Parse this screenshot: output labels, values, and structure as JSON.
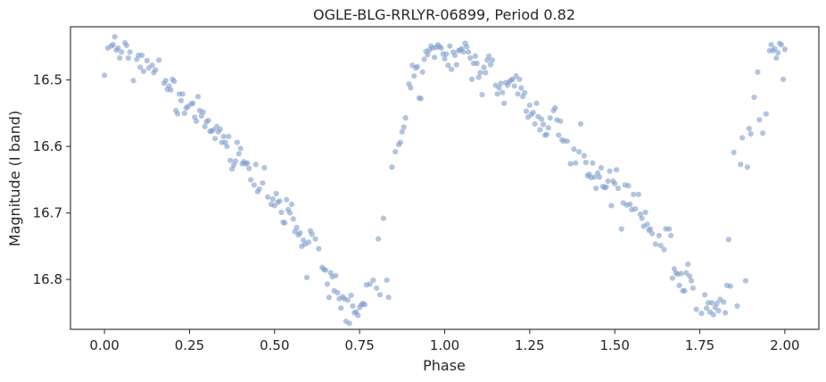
{
  "chart_data": {
    "type": "scatter",
    "title": "OGLE-BLG-RRLYR-06899, Period 0.82",
    "xlabel": "Phase",
    "ylabel": "Magnitude (I band)",
    "xlim": [
      -0.1,
      2.1
    ],
    "ylim": [
      16.875,
      16.42
    ],
    "y_inverted": true,
    "grid": false,
    "point_color": "#7f9ccb",
    "point_opacity": 0.6,
    "x_ticks": [
      0.0,
      0.25,
      0.5,
      0.75,
      1.0,
      1.25,
      1.5,
      1.75,
      2.0
    ],
    "x_tick_labels": [
      "0.00",
      "0.25",
      "0.50",
      "0.75",
      "1.00",
      "1.25",
      "1.50",
      "1.75",
      "2.00"
    ],
    "y_ticks": [
      16.5,
      16.6,
      16.7,
      16.8
    ],
    "y_tick_labels": [
      "16.5",
      "16.6",
      "16.7",
      "16.8"
    ],
    "points": [
      [
        0.0,
        16.493
      ],
      [
        0.01,
        16.452
      ],
      [
        0.02,
        16.449
      ],
      [
        0.025,
        16.447
      ],
      [
        0.03,
        16.435
      ],
      [
        0.035,
        16.455
      ],
      [
        0.04,
        16.452
      ],
      [
        0.045,
        16.467
      ],
      [
        0.05,
        16.458
      ],
      [
        0.06,
        16.444
      ],
      [
        0.065,
        16.448
      ],
      [
        0.07,
        16.467
      ],
      [
        0.075,
        16.458
      ],
      [
        0.085,
        16.501
      ],
      [
        0.095,
        16.469
      ],
      [
        0.1,
        16.463
      ],
      [
        0.105,
        16.481
      ],
      [
        0.11,
        16.463
      ],
      [
        0.115,
        16.487
      ],
      [
        0.125,
        16.471
      ],
      [
        0.13,
        16.482
      ],
      [
        0.14,
        16.478
      ],
      [
        0.145,
        16.489
      ],
      [
        0.15,
        16.485
      ],
      [
        0.16,
        16.47
      ],
      [
        0.175,
        16.505
      ],
      [
        0.18,
        16.501
      ],
      [
        0.185,
        16.514
      ],
      [
        0.19,
        16.509
      ],
      [
        0.195,
        16.515
      ],
      [
        0.2,
        16.499
      ],
      [
        0.205,
        16.502
      ],
      [
        0.21,
        16.546
      ],
      [
        0.215,
        16.551
      ],
      [
        0.22,
        16.521
      ],
      [
        0.225,
        16.531
      ],
      [
        0.23,
        16.521
      ],
      [
        0.235,
        16.55
      ],
      [
        0.24,
        16.542
      ],
      [
        0.245,
        16.54
      ],
      [
        0.255,
        16.536
      ],
      [
        0.26,
        16.535
      ],
      [
        0.265,
        16.556
      ],
      [
        0.27,
        16.562
      ],
      [
        0.275,
        16.525
      ],
      [
        0.28,
        16.546
      ],
      [
        0.285,
        16.554
      ],
      [
        0.29,
        16.548
      ],
      [
        0.295,
        16.57
      ],
      [
        0.3,
        16.563
      ],
      [
        0.305,
        16.561
      ],
      [
        0.31,
        16.577
      ],
      [
        0.315,
        16.577
      ],
      [
        0.32,
        16.575
      ],
      [
        0.325,
        16.588
      ],
      [
        0.33,
        16.57
      ],
      [
        0.335,
        16.578
      ],
      [
        0.34,
        16.574
      ],
      [
        0.345,
        16.594
      ],
      [
        0.35,
        16.585
      ],
      [
        0.355,
        16.594
      ],
      [
        0.36,
        16.6
      ],
      [
        0.365,
        16.585
      ],
      [
        0.37,
        16.621
      ],
      [
        0.375,
        16.634
      ],
      [
        0.38,
        16.628
      ],
      [
        0.385,
        16.622
      ],
      [
        0.39,
        16.594
      ],
      [
        0.395,
        16.611
      ],
      [
        0.4,
        16.603
      ],
      [
        0.405,
        16.626
      ],
      [
        0.41,
        16.623
      ],
      [
        0.415,
        16.626
      ],
      [
        0.42,
        16.625
      ],
      [
        0.425,
        16.633
      ],
      [
        0.43,
        16.65
      ],
      [
        0.44,
        16.658
      ],
      [
        0.445,
        16.627
      ],
      [
        0.45,
        16.668
      ],
      [
        0.455,
        16.664
      ],
      [
        0.465,
        16.655
      ],
      [
        0.47,
        16.632
      ],
      [
        0.48,
        16.676
      ],
      [
        0.49,
        16.687
      ],
      [
        0.495,
        16.679
      ],
      [
        0.5,
        16.689
      ],
      [
        0.505,
        16.671
      ],
      [
        0.51,
        16.684
      ],
      [
        0.515,
        16.682
      ],
      [
        0.52,
        16.699
      ],
      [
        0.525,
        16.714
      ],
      [
        0.53,
        16.715
      ],
      [
        0.535,
        16.68
      ],
      [
        0.54,
        16.695
      ],
      [
        0.545,
        16.7
      ],
      [
        0.55,
        16.687
      ],
      [
        0.555,
        16.709
      ],
      [
        0.56,
        16.728
      ],
      [
        0.565,
        16.722
      ],
      [
        0.57,
        16.733
      ],
      [
        0.575,
        16.73
      ],
      [
        0.58,
        16.75
      ],
      [
        0.585,
        16.741
      ],
      [
        0.59,
        16.747
      ],
      [
        0.595,
        16.797
      ],
      [
        0.6,
        16.744
      ],
      [
        0.605,
        16.727
      ],
      [
        0.61,
        16.732
      ],
      [
        0.62,
        16.739
      ],
      [
        0.63,
        16.754
      ],
      [
        0.64,
        16.782
      ],
      [
        0.645,
        16.785
      ],
      [
        0.65,
        16.786
      ],
      [
        0.655,
        16.807
      ],
      [
        0.66,
        16.827
      ],
      [
        0.665,
        16.79
      ],
      [
        0.67,
        16.796
      ],
      [
        0.675,
        16.817
      ],
      [
        0.68,
        16.794
      ],
      [
        0.685,
        16.82
      ],
      [
        0.69,
        16.829
      ],
      [
        0.695,
        16.843
      ],
      [
        0.7,
        16.826
      ],
      [
        0.705,
        16.829
      ],
      [
        0.71,
        16.863
      ],
      [
        0.715,
        16.831
      ],
      [
        0.72,
        16.866
      ],
      [
        0.725,
        16.824
      ],
      [
        0.73,
        16.84
      ],
      [
        0.735,
        16.85
      ],
      [
        0.74,
        16.849
      ],
      [
        0.745,
        16.854
      ],
      [
        0.75,
        16.842
      ],
      [
        0.755,
        16.838
      ],
      [
        0.76,
        16.836
      ],
      [
        0.765,
        16.838
      ],
      [
        0.77,
        16.808
      ],
      [
        0.78,
        16.807
      ],
      [
        0.79,
        16.801
      ],
      [
        0.8,
        16.813
      ],
      [
        0.805,
        16.739
      ],
      [
        0.81,
        16.823
      ],
      [
        0.82,
        16.708
      ],
      [
        0.83,
        16.801
      ],
      [
        0.835,
        16.827
      ],
      [
        0.845,
        16.631
      ],
      [
        0.855,
        16.608
      ],
      [
        0.865,
        16.597
      ],
      [
        0.87,
        16.594
      ],
      [
        0.875,
        16.578
      ],
      [
        0.88,
        16.571
      ],
      [
        0.885,
        16.557
      ],
      [
        0.895,
        16.506
      ],
      [
        0.9,
        16.512
      ],
      [
        0.905,
        16.478
      ],
      [
        0.91,
        16.494
      ],
      [
        0.915,
        16.482
      ],
      [
        0.92,
        16.48
      ],
      [
        0.925,
        16.527
      ],
      [
        0.93,
        16.528
      ],
      [
        0.935,
        16.488
      ],
      [
        0.94,
        16.469
      ],
      [
        0.945,
        16.457
      ],
      [
        0.95,
        16.462
      ],
      [
        0.955,
        16.455
      ],
      [
        0.96,
        16.449
      ],
      [
        0.965,
        16.452
      ],
      [
        0.97,
        16.466
      ],
      [
        0.975,
        16.451
      ],
      [
        0.98,
        16.447
      ],
      [
        0.985,
        16.45
      ],
      [
        0.99,
        16.452
      ],
      [
        0.995,
        16.461
      ],
      [
        1.0,
        16.468
      ],
      [
        1.005,
        16.461
      ],
      [
        1.01,
        16.478
      ],
      [
        1.015,
        16.449
      ],
      [
        1.02,
        16.484
      ],
      [
        1.025,
        16.458
      ],
      [
        1.03,
        16.463
      ],
      [
        1.035,
        16.477
      ],
      [
        1.04,
        16.456
      ],
      [
        1.045,
        16.455
      ],
      [
        1.05,
        16.453
      ],
      [
        1.055,
        16.458
      ],
      [
        1.06,
        16.445
      ],
      [
        1.065,
        16.45
      ],
      [
        1.07,
        16.458
      ],
      [
        1.075,
        16.467
      ],
      [
        1.08,
        16.499
      ],
      [
        1.085,
        16.475
      ],
      [
        1.09,
        16.464
      ],
      [
        1.095,
        16.475
      ],
      [
        1.1,
        16.496
      ],
      [
        1.105,
        16.489
      ],
      [
        1.11,
        16.522
      ],
      [
        1.115,
        16.481
      ],
      [
        1.12,
        16.489
      ],
      [
        1.125,
        16.47
      ],
      [
        1.13,
        16.464
      ],
      [
        1.135,
        16.477
      ],
      [
        1.14,
        16.47
      ],
      [
        1.15,
        16.508
      ],
      [
        1.155,
        16.521
      ],
      [
        1.16,
        16.512
      ],
      [
        1.165,
        16.505
      ],
      [
        1.17,
        16.519
      ],
      [
        1.175,
        16.535
      ],
      [
        1.18,
        16.504
      ],
      [
        1.185,
        16.508
      ],
      [
        1.19,
        16.503
      ],
      [
        1.195,
        16.5
      ],
      [
        1.2,
        16.499
      ],
      [
        1.205,
        16.509
      ],
      [
        1.21,
        16.494
      ],
      [
        1.215,
        16.521
      ],
      [
        1.22,
        16.499
      ],
      [
        1.225,
        16.512
      ],
      [
        1.23,
        16.525
      ],
      [
        1.235,
        16.519
      ],
      [
        1.24,
        16.547
      ],
      [
        1.245,
        16.556
      ],
      [
        1.25,
        16.538
      ],
      [
        1.255,
        16.552
      ],
      [
        1.26,
        16.549
      ],
      [
        1.265,
        16.566
      ],
      [
        1.27,
        16.535
      ],
      [
        1.275,
        16.555
      ],
      [
        1.28,
        16.575
      ],
      [
        1.285,
        16.559
      ],
      [
        1.29,
        16.567
      ],
      [
        1.295,
        16.583
      ],
      [
        1.3,
        16.582
      ],
      [
        1.305,
        16.572
      ],
      [
        1.31,
        16.557
      ],
      [
        1.32,
        16.546
      ],
      [
        1.325,
        16.542
      ],
      [
        1.33,
        16.56
      ],
      [
        1.335,
        16.583
      ],
      [
        1.34,
        16.562
      ],
      [
        1.345,
        16.59
      ],
      [
        1.35,
        16.592
      ],
      [
        1.36,
        16.592
      ],
      [
        1.37,
        16.626
      ],
      [
        1.38,
        16.604
      ],
      [
        1.385,
        16.625
      ],
      [
        1.395,
        16.608
      ],
      [
        1.4,
        16.566
      ],
      [
        1.41,
        16.614
      ],
      [
        1.415,
        16.624
      ],
      [
        1.42,
        16.644
      ],
      [
        1.425,
        16.642
      ],
      [
        1.43,
        16.647
      ],
      [
        1.435,
        16.625
      ],
      [
        1.44,
        16.646
      ],
      [
        1.445,
        16.663
      ],
      [
        1.45,
        16.64
      ],
      [
        1.455,
        16.646
      ],
      [
        1.46,
        16.632
      ],
      [
        1.465,
        16.66
      ],
      [
        1.47,
        16.662
      ],
      [
        1.475,
        16.661
      ],
      [
        1.48,
        16.652
      ],
      [
        1.485,
        16.637
      ],
      [
        1.49,
        16.689
      ],
      [
        1.495,
        16.652
      ],
      [
        1.5,
        16.656
      ],
      [
        1.505,
        16.635
      ],
      [
        1.51,
        16.663
      ],
      [
        1.52,
        16.724
      ],
      [
        1.525,
        16.685
      ],
      [
        1.53,
        16.658
      ],
      [
        1.535,
        16.688
      ],
      [
        1.54,
        16.659
      ],
      [
        1.545,
        16.687
      ],
      [
        1.55,
        16.695
      ],
      [
        1.555,
        16.672
      ],
      [
        1.56,
        16.694
      ],
      [
        1.57,
        16.672
      ],
      [
        1.575,
        16.702
      ],
      [
        1.58,
        16.708
      ],
      [
        1.585,
        16.72
      ],
      [
        1.59,
        16.699
      ],
      [
        1.595,
        16.717
      ],
      [
        1.6,
        16.726
      ],
      [
        1.605,
        16.724
      ],
      [
        1.61,
        16.731
      ],
      [
        1.62,
        16.747
      ],
      [
        1.63,
        16.734
      ],
      [
        1.635,
        16.749
      ],
      [
        1.645,
        16.755
      ],
      [
        1.65,
        16.724
      ],
      [
        1.66,
        16.724
      ],
      [
        1.665,
        16.734
      ],
      [
        1.67,
        16.798
      ],
      [
        1.675,
        16.784
      ],
      [
        1.68,
        16.79
      ],
      [
        1.685,
        16.792
      ],
      [
        1.69,
        16.809
      ],
      [
        1.695,
        16.791
      ],
      [
        1.7,
        16.817
      ],
      [
        1.705,
        16.817
      ],
      [
        1.71,
        16.79
      ],
      [
        1.715,
        16.777
      ],
      [
        1.72,
        16.795
      ],
      [
        1.725,
        16.802
      ],
      [
        1.73,
        16.813
      ],
      [
        1.74,
        16.845
      ],
      [
        1.755,
        16.851
      ],
      [
        1.765,
        16.823
      ],
      [
        1.77,
        16.843
      ],
      [
        1.775,
        16.835
      ],
      [
        1.78,
        16.849
      ],
      [
        1.785,
        16.835
      ],
      [
        1.79,
        16.853
      ],
      [
        1.795,
        16.842
      ],
      [
        1.8,
        16.836
      ],
      [
        1.805,
        16.847
      ],
      [
        1.81,
        16.83
      ],
      [
        1.82,
        16.834
      ],
      [
        1.825,
        16.85
      ],
      [
        1.83,
        16.809
      ],
      [
        1.835,
        16.74
      ],
      [
        1.84,
        16.81
      ],
      [
        1.85,
        16.609
      ],
      [
        1.86,
        16.84
      ],
      [
        1.87,
        16.627
      ],
      [
        1.875,
        16.587
      ],
      [
        1.885,
        16.802
      ],
      [
        1.89,
        16.631
      ],
      [
        1.895,
        16.573
      ],
      [
        1.9,
        16.581
      ],
      [
        1.91,
        16.526
      ],
      [
        1.92,
        16.488
      ],
      [
        1.925,
        16.56
      ],
      [
        1.935,
        16.58
      ],
      [
        1.945,
        16.551
      ],
      [
        1.955,
        16.456
      ],
      [
        1.96,
        16.447
      ],
      [
        1.965,
        16.456
      ],
      [
        1.97,
        16.453
      ],
      [
        1.975,
        16.467
      ],
      [
        1.98,
        16.459
      ],
      [
        1.985,
        16.445
      ],
      [
        1.99,
        16.447
      ],
      [
        1.995,
        16.499
      ],
      [
        2.0,
        16.454
      ]
    ]
  }
}
